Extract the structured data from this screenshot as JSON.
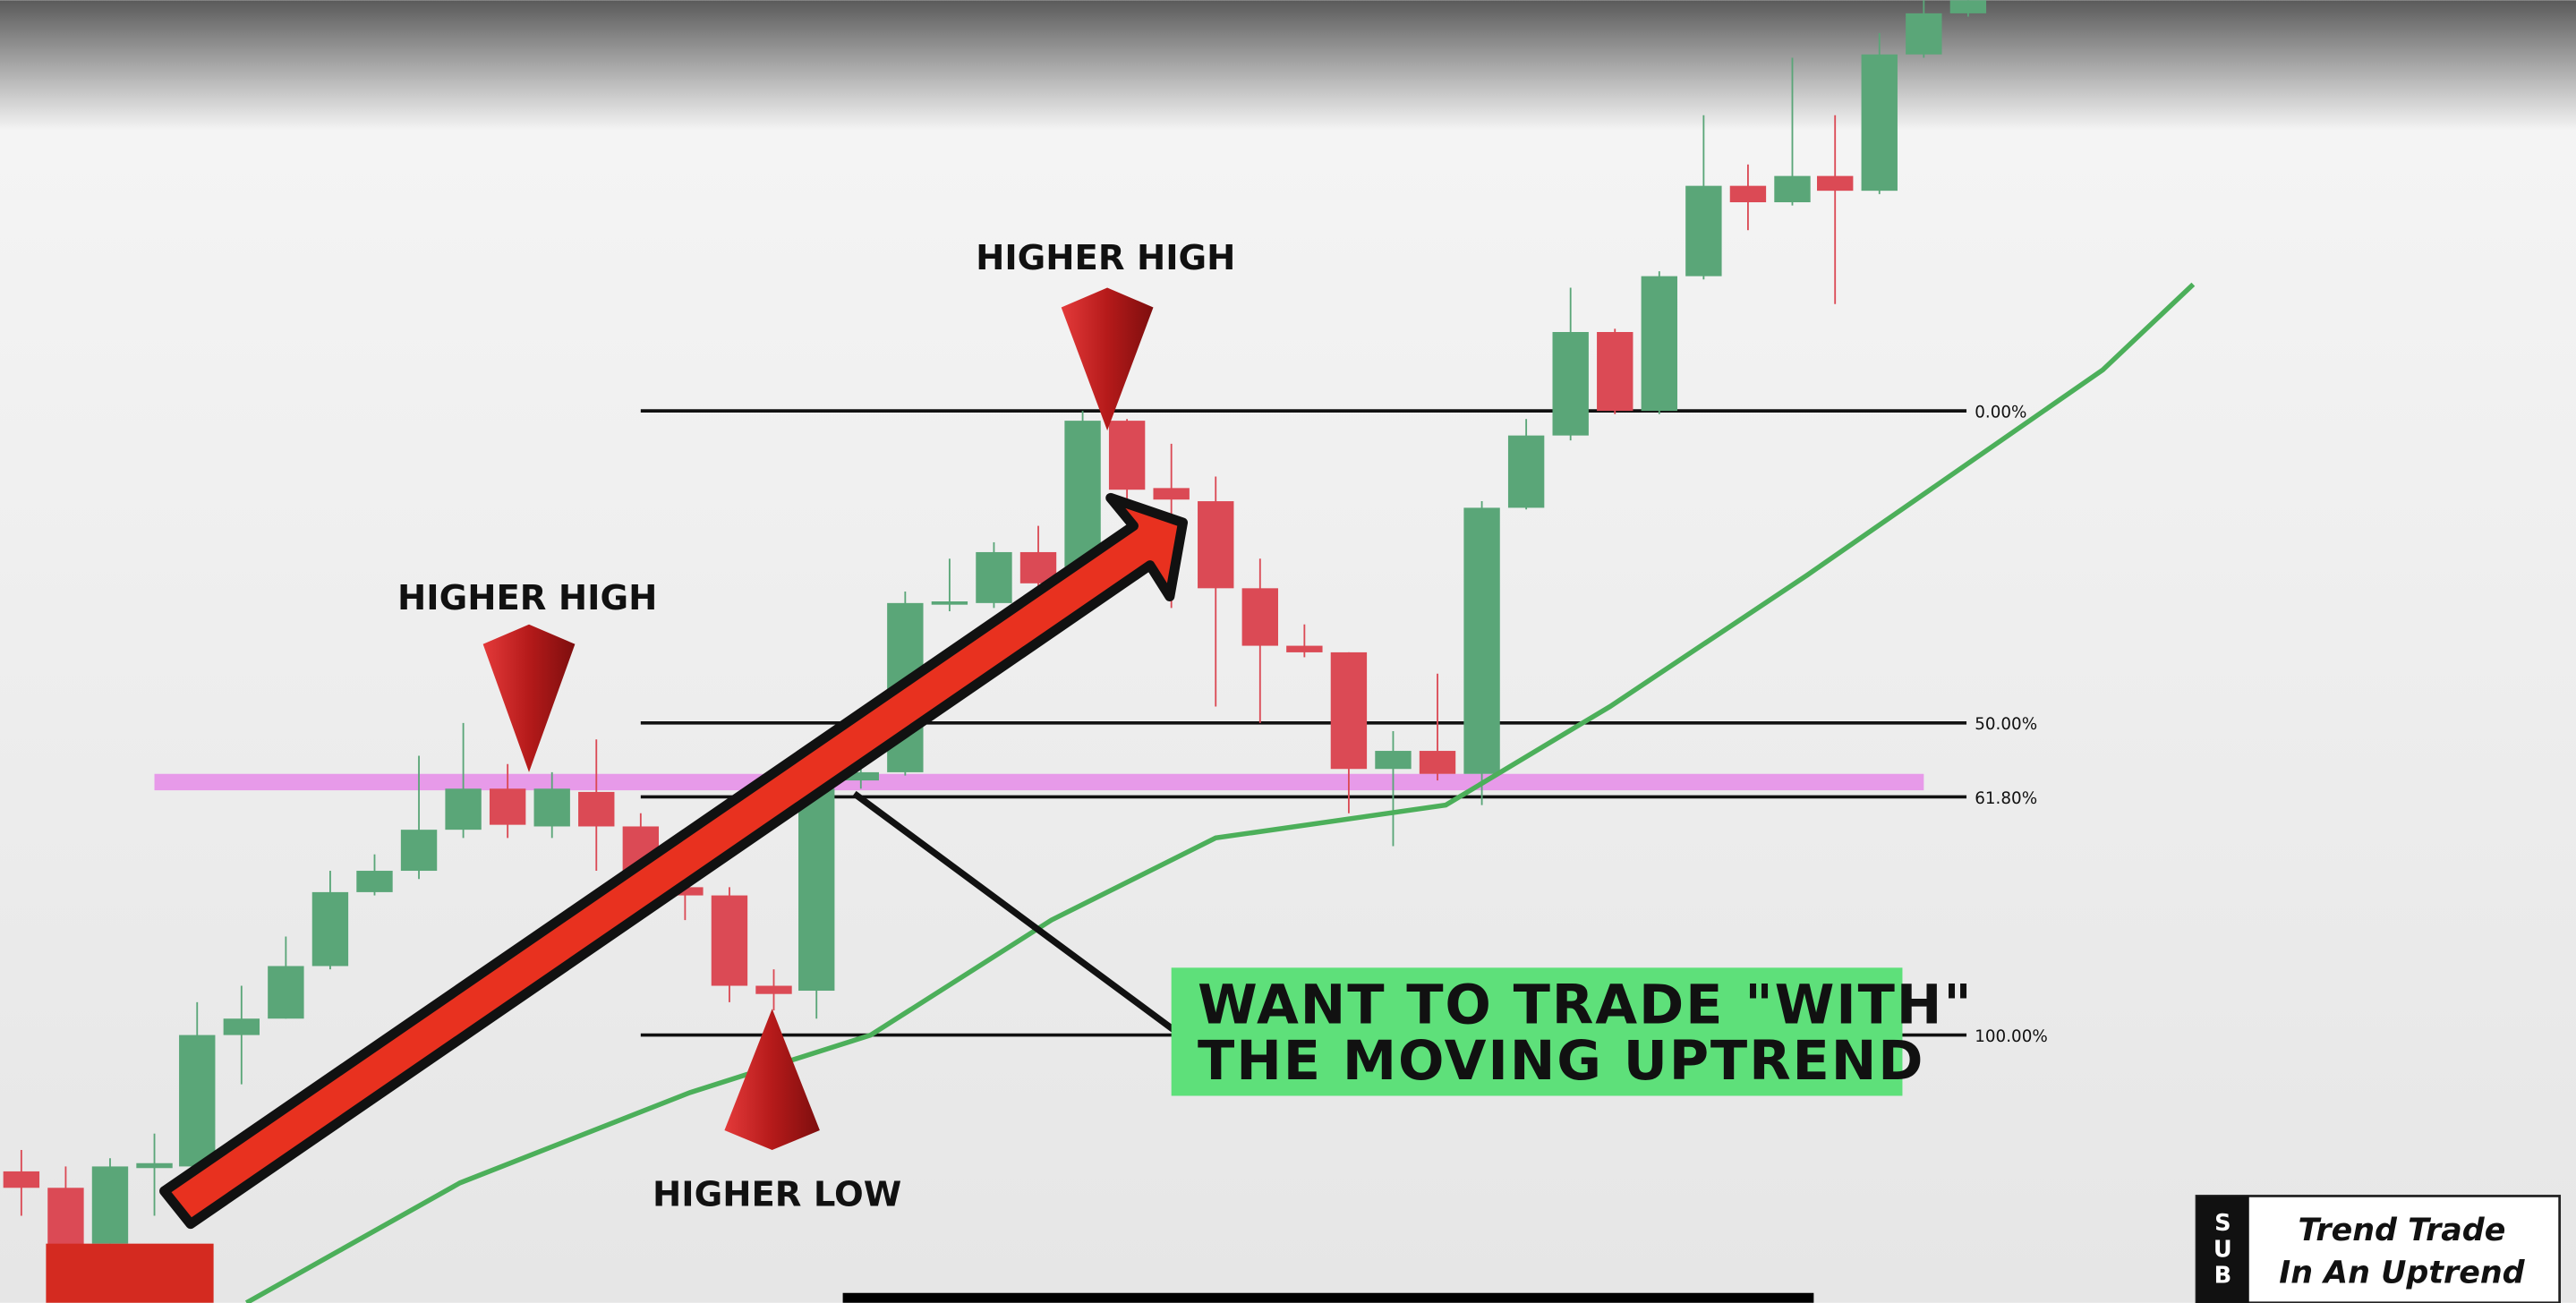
{
  "annotations": [
    "HIGHER HIGH",
    "HIGHER HIGH",
    "HIGHER LOW"
  ],
  "fib_levels": [
    "0.00%",
    "50.00%",
    "61.80%",
    "100.00%"
  ],
  "callout": {
    "lines": [
      "WANT TO TRADE \"WITH\"",
      "THE MOVING UPTREND"
    ]
  },
  "badge": {
    "logo": [
      "S",
      "U",
      "B"
    ],
    "lines": [
      "Trend Trade",
      "In An Uptrend"
    ]
  }
}
